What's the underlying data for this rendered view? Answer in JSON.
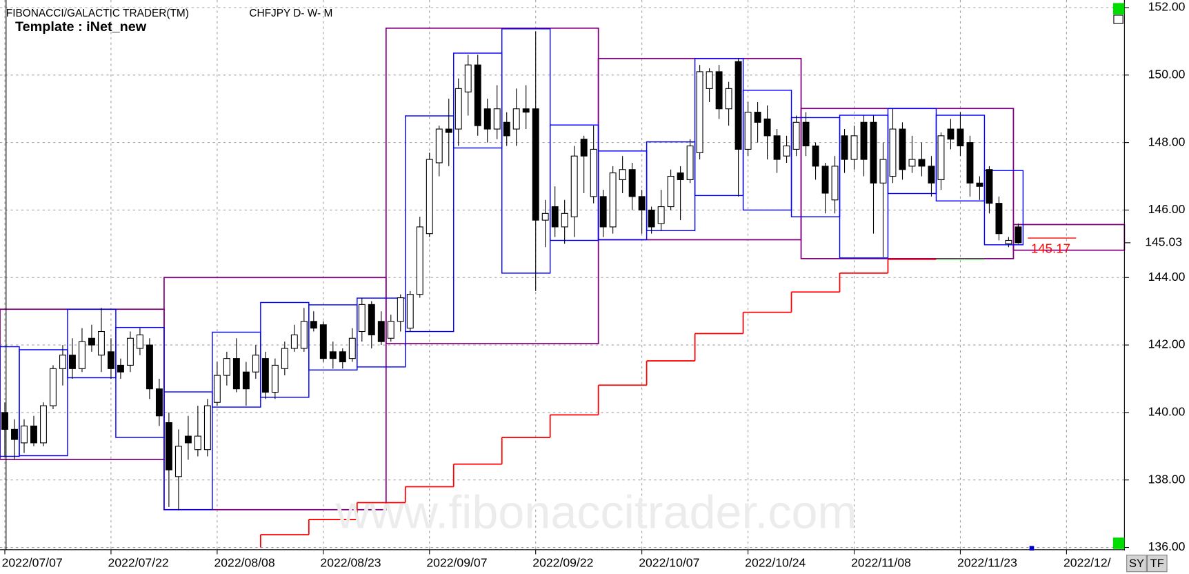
{
  "chart_data": {
    "type": "candlestick",
    "title": "FIBONACCI/GALACTIC TRADER(TM)",
    "subtitle": "CHFJPY D- W- M",
    "template": "Template : iNet_new",
    "watermark": "www.fibonaccitrader.com",
    "grid": true,
    "xlim": [
      -0.5,
      116
    ],
    "ylim": [
      136,
      152
    ],
    "yticks": [
      {
        "value": 136,
        "label": "136.00"
      },
      {
        "value": 138,
        "label": "138.00"
      },
      {
        "value": 140,
        "label": "140.00"
      },
      {
        "value": 142,
        "label": "142.00"
      },
      {
        "value": 144,
        "label": "144.00"
      },
      {
        "value": 146,
        "label": "146.00"
      },
      {
        "value": 148,
        "label": "148.00"
      },
      {
        "value": 150,
        "label": "150.00"
      },
      {
        "value": 152,
        "label": "152.00"
      }
    ],
    "xticks": [
      {
        "value": 0,
        "label": "2022/07/07"
      },
      {
        "value": 11,
        "label": "2022/07/22"
      },
      {
        "value": 22,
        "label": "2022/08/08"
      },
      {
        "value": 33,
        "label": "2022/08/23"
      },
      {
        "value": 44,
        "label": "2022/09/07"
      },
      {
        "value": 55,
        "label": "2022/09/22"
      },
      {
        "value": 66,
        "label": "2022/10/07"
      },
      {
        "value": 77,
        "label": "2022/10/24"
      },
      {
        "value": 88,
        "label": "2022/11/08"
      },
      {
        "value": 99,
        "label": "2022/11/23"
      },
      {
        "value": 110,
        "label": "2022/12/"
      }
    ],
    "last_price": {
      "value": 145.03,
      "label": "145.03"
    },
    "open": [
      140.0,
      139.5,
      139.1,
      139.6,
      139.1,
      140.2,
      141.3,
      141.7,
      141.3,
      142.2,
      141.7,
      141.8,
      141.4,
      141.4,
      141.9,
      142.0,
      140.7,
      139.7,
      138.1,
      139.3,
      138.9,
      138.9,
      140.3,
      141.1,
      141.6,
      141.2,
      141.2,
      141.6,
      140.6,
      141.3,
      141.9,
      141.9,
      142.7,
      142.6,
      141.8,
      141.8,
      141.6,
      142.4,
      143.2,
      142.7,
      142.2,
      142.7,
      142.5,
      143.5,
      145.3,
      147.4,
      148.4,
      148.4,
      149.5,
      150.3,
      149.0,
      148.4,
      148.6,
      148.4,
      149.0,
      149.0,
      145.7,
      146.1,
      145.5,
      145.8,
      148.1,
      146.4,
      146.4,
      145.5,
      146.9,
      147.2,
      146.4,
      146.0,
      145.6,
      146.1,
      147.1,
      146.9,
      147.7,
      149.6,
      150.1,
      149.0,
      150.4,
      147.8,
      148.9,
      148.7,
      148.2,
      147.6,
      147.8,
      148.6,
      147.9,
      147.3,
      146.3,
      148.2,
      147.5,
      148.6,
      148.6,
      146.8,
      147.0,
      148.4,
      147.3,
      147.5,
      147.3,
      146.9,
      148.4,
      148.4,
      148.0,
      146.8,
      147.2,
      146.2,
      145.0,
      145.5
    ],
    "high": [
      140.3,
      139.8,
      139.8,
      139.9,
      140.3,
      141.4,
      142.0,
      142.2,
      142.5,
      142.6,
      143.1,
      142.2,
      141.6,
      142.4,
      142.5,
      142.2,
      141.0,
      140.0,
      139.5,
      139.9,
      140.2,
      140.4,
      141.5,
      141.8,
      142.2,
      141.5,
      142.0,
      141.8,
      141.6,
      142.1,
      142.6,
      143.1,
      143.0,
      142.7,
      142.1,
      141.9,
      142.5,
      143.4,
      143.3,
      143.0,
      142.9,
      143.5,
      143.6,
      145.8,
      147.7,
      148.5,
      149.3,
      149.9,
      150.6,
      150.6,
      149.3,
      149.7,
      148.9,
      149.6,
      149.7,
      151.3,
      146.3,
      146.7,
      146.3,
      147.9,
      148.2,
      148.5,
      146.6,
      147.3,
      147.6,
      147.4,
      146.6,
      146.1,
      146.6,
      147.2,
      147.3,
      148.1,
      150.3,
      150.2,
      150.3,
      149.8,
      150.5,
      149.2,
      149.2,
      149.1,
      148.4,
      148.2,
      148.8,
      148.9,
      148.0,
      147.4,
      147.6,
      148.4,
      148.5,
      148.8,
      148.8,
      148.0,
      149.0,
      148.6,
      148.2,
      148.0,
      147.6,
      148.3,
      148.7,
      148.9,
      148.2,
      147.0,
      147.3,
      146.4,
      145.2,
      145.6
    ],
    "low": [
      138.7,
      138.6,
      138.8,
      139.0,
      139.0,
      140.1,
      140.8,
      141.0,
      141.2,
      141.8,
      141.2,
      141.0,
      141.0,
      141.2,
      141.7,
      140.4,
      139.6,
      137.2,
      137.1,
      138.6,
      138.7,
      138.7,
      140.2,
      140.8,
      140.6,
      140.2,
      141.0,
      140.4,
      140.4,
      141.1,
      141.8,
      141.8,
      142.4,
      141.5,
      141.3,
      141.3,
      141.5,
      142.1,
      141.9,
      142.0,
      142.1,
      142.4,
      142.4,
      143.4,
      145.2,
      147.0,
      147.3,
      147.9,
      148.8,
      148.2,
      148.0,
      148.1,
      147.9,
      147.9,
      148.4,
      143.6,
      144.9,
      145.2,
      145.0,
      145.2,
      146.5,
      146.2,
      145.2,
      145.3,
      146.5,
      146.0,
      145.3,
      145.3,
      145.4,
      146.0,
      145.7,
      146.8,
      147.5,
      149.2,
      148.7,
      148.5,
      146.4,
      147.6,
      148.0,
      147.5,
      147.1,
      147.4,
      147.6,
      147.6,
      146.9,
      145.9,
      145.9,
      147.1,
      147.2,
      147.0,
      145.3,
      144.6,
      146.8,
      146.9,
      147.1,
      147.0,
      146.4,
      146.6,
      147.8,
      147.6,
      146.4,
      146.3,
      145.9,
      145.1,
      144.9,
      145.0
    ],
    "close": [
      139.5,
      139.2,
      139.6,
      139.1,
      140.2,
      141.3,
      141.7,
      141.3,
      142.1,
      142.0,
      142.4,
      141.3,
      141.2,
      142.2,
      142.3,
      140.7,
      139.9,
      138.3,
      139.0,
      139.1,
      139.3,
      140.2,
      141.1,
      141.6,
      140.7,
      140.7,
      141.7,
      140.6,
      141.4,
      141.9,
      142.3,
      142.7,
      142.5,
      141.6,
      141.6,
      141.5,
      142.2,
      143.2,
      142.3,
      142.1,
      142.7,
      143.4,
      143.5,
      145.5,
      147.5,
      148.4,
      148.3,
      149.6,
      150.3,
      148.5,
      148.4,
      149.0,
      148.2,
      149.0,
      148.9,
      145.7,
      145.9,
      145.5,
      145.9,
      147.6,
      147.6,
      147.8,
      145.5,
      147.1,
      147.2,
      146.4,
      146.0,
      145.5,
      146.1,
      147.0,
      146.9,
      147.9,
      150.1,
      150.1,
      149.0,
      149.6,
      147.8,
      148.9,
      148.6,
      148.2,
      147.5,
      147.9,
      148.6,
      147.9,
      147.3,
      146.5,
      147.3,
      147.5,
      148.2,
      147.5,
      146.8,
      147.5,
      148.4,
      147.2,
      147.5,
      147.3,
      146.8,
      148.2,
      148.1,
      147.9,
      146.8,
      146.7,
      146.2,
      145.3,
      145.1,
      145.03
    ],
    "weekly_boxes": {
      "color": "#0000ff",
      "start": [
        0,
        2,
        7,
        12,
        17,
        22,
        27,
        32,
        37,
        42,
        47,
        52,
        57,
        62,
        67,
        72,
        77,
        82,
        87,
        92,
        97,
        102
      ],
      "end": [
        1,
        6,
        11,
        16,
        21,
        26,
        31,
        36,
        41,
        46,
        51,
        56,
        61,
        66,
        71,
        76,
        81,
        86,
        91,
        96,
        101,
        105
      ],
      "high": [
        141.95,
        141.86,
        143.06,
        142.52,
        140.61,
        142.38,
        143.26,
        143.19,
        143.39,
        148.79,
        150.65,
        151.37,
        148.52,
        147.75,
        148.02,
        150.49,
        149.55,
        148.74,
        148.81,
        149.01,
        148.81,
        147.17
      ],
      "low": [
        138.7,
        138.72,
        141.03,
        139.26,
        137.12,
        140.16,
        140.45,
        141.26,
        141.35,
        142.4,
        147.84,
        144.13,
        145.1,
        145.12,
        145.39,
        146.43,
        146.0,
        145.8,
        144.58,
        146.49,
        146.27,
        144.97
      ]
    },
    "monthly_boxes": {
      "color": "#800080",
      "start": [
        0,
        17,
        40,
        62,
        83,
        105
      ],
      "end": [
        16,
        39,
        61,
        82,
        104,
        115.5
      ],
      "high": [
        143.06,
        144.0,
        151.39,
        150.49,
        149.01,
        145.57
      ],
      "low": [
        138.61,
        137.12,
        142.04,
        145.12,
        144.56,
        144.81
      ]
    },
    "stop_line": {
      "color": "#ff0000",
      "x": [
        26.5,
        31.5,
        36.5,
        41.5,
        46.5,
        51.5,
        56.5,
        61.5,
        66.5,
        71.5,
        76.5,
        81.5,
        86.5,
        91.5
      ],
      "x_end": 96.5,
      "values": [
        136.38,
        136.83,
        137.33,
        137.8,
        138.47,
        139.26,
        139.93,
        140.81,
        141.53,
        142.34,
        142.97,
        143.57,
        144.13,
        144.54
      ]
    },
    "green_line": {
      "color": "#66dd66",
      "x": [
        96.5
      ],
      "x_end": 101.5,
      "values": [
        144.54
      ]
    },
    "marker_line": {
      "color": "#ff0000",
      "x": 106,
      "x_end": 111,
      "value": 145.17,
      "label": "145.17"
    }
  },
  "controls": [
    "SY",
    "TF"
  ]
}
